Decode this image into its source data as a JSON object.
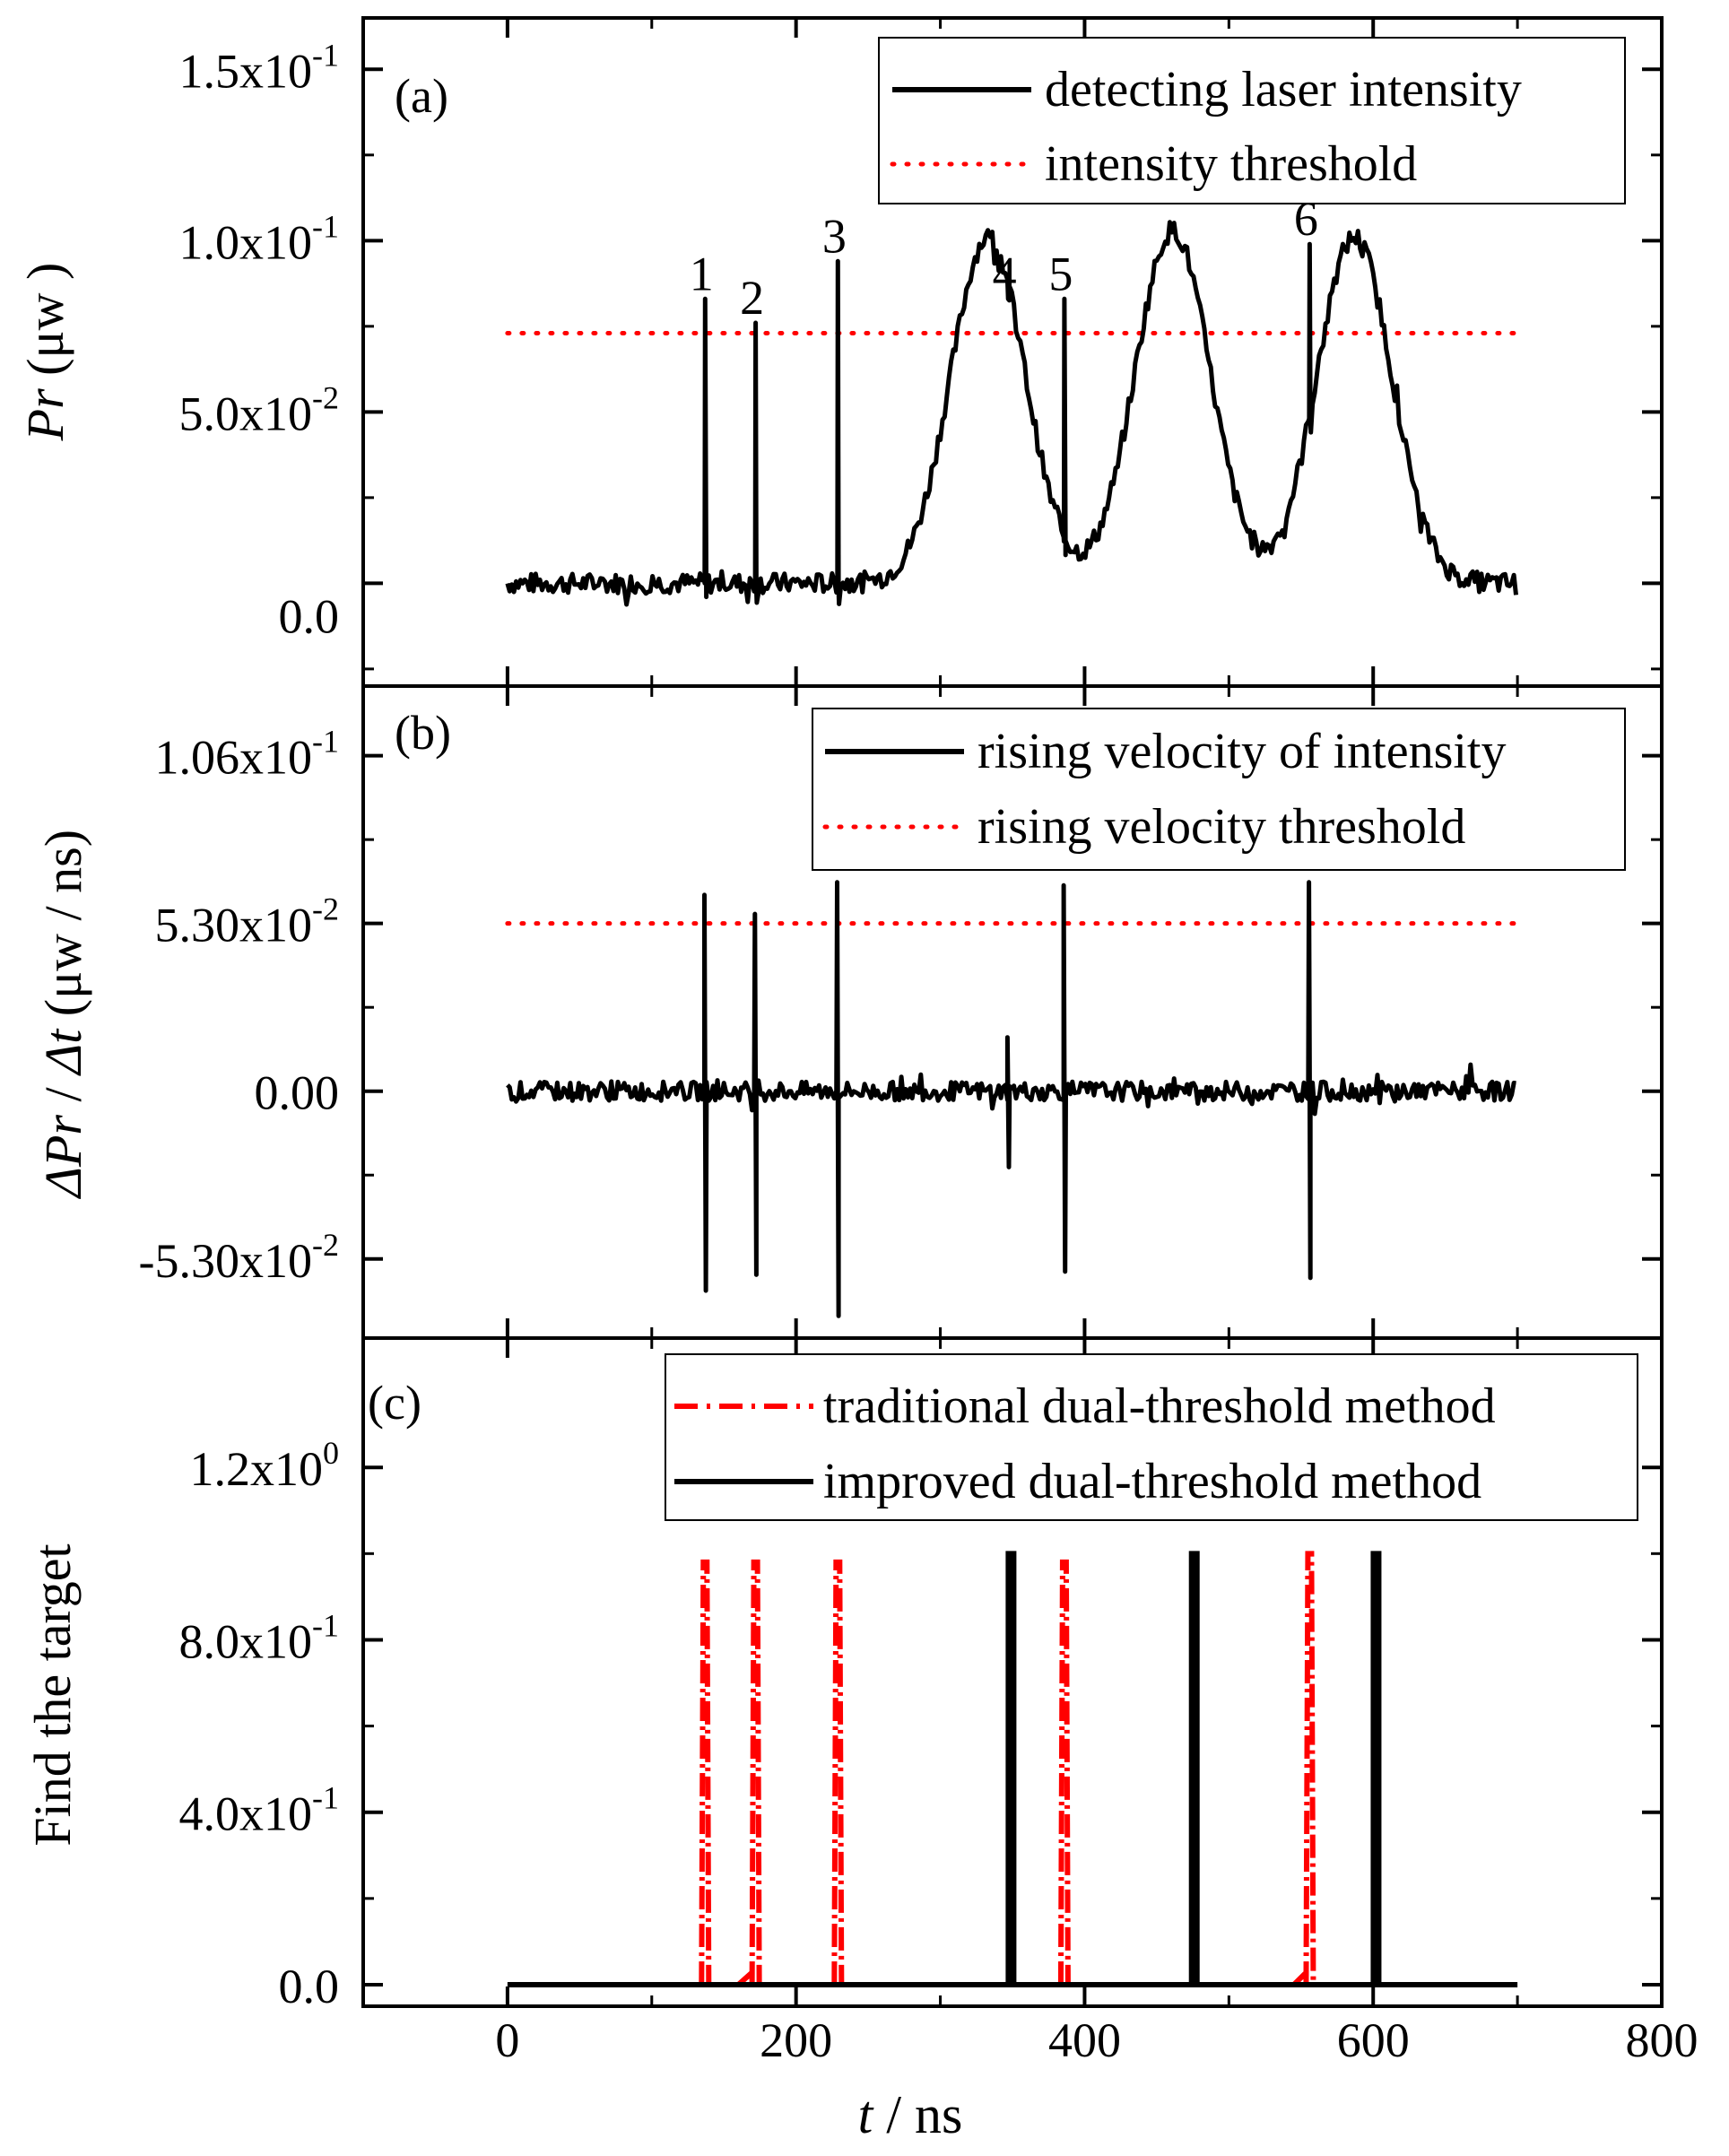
{
  "colors": {
    "primary": "#000000",
    "threshold": "#ff0000"
  },
  "chart_data": [
    {
      "type": "line",
      "panel_label": "(a)",
      "ylabel_italic": "Pr",
      "ylabel_rest": " (μw )",
      "xlim": [
        -100,
        800
      ],
      "ylim": [
        -0.03,
        0.165
      ],
      "yticks": [
        {
          "value": 0.15,
          "base": "1.5x10",
          "exp": "-1"
        },
        {
          "value": 0.1,
          "base": "1.0x10",
          "exp": "-1"
        },
        {
          "value": 0.05,
          "base": "5.0x10",
          "exp": "-2"
        },
        {
          "value": 0.0,
          "base": "0.0",
          "exp": ""
        }
      ],
      "legend": [
        "detecting laser intensity",
        "intensity threshold"
      ],
      "threshold": 0.073,
      "threshold_x": [
        0,
        700
      ],
      "spikes": [
        {
          "label": "1",
          "x": 137,
          "peak": 0.083
        },
        {
          "label": "2",
          "x": 172,
          "peak": 0.076
        },
        {
          "label": "3",
          "x": 229,
          "peak": 0.094
        },
        {
          "label": "4",
          "x": 347,
          "peak": 0.083
        },
        {
          "label": "5",
          "x": 386,
          "peak": 0.083
        },
        {
          "label": "6",
          "x": 556,
          "peak": 0.099
        }
      ],
      "pulses": [
        {
          "center": 333,
          "peak": 0.101,
          "width": 18
        },
        {
          "center": 461,
          "peak": 0.103,
          "width": 18
        },
        {
          "center": 587,
          "peak": 0.101,
          "width": 18
        }
      ],
      "noise_amplitude": 0.003,
      "series_x_range": [
        0,
        700
      ]
    },
    {
      "type": "line",
      "panel_label": "(b)",
      "ylabel_italic1": "ΔPr",
      "ylabel_sep": " / ",
      "ylabel_italic2": "Δt",
      "ylabel_rest": " (μw / ns)",
      "xlim": [
        -100,
        800
      ],
      "ylim": [
        -0.078,
        0.128
      ],
      "yticks": [
        {
          "value": 0.106,
          "base": "1.06x10",
          "exp": "-1"
        },
        {
          "value": 0.053,
          "base": "5.30x10",
          "exp": "-2"
        },
        {
          "value": 0.0,
          "base": "0.00",
          "exp": ""
        },
        {
          "value": -0.053,
          "base": "-5.30x10",
          "exp": "-2"
        }
      ],
      "legend": [
        "rising velocity of intensity",
        "rising velocity threshold"
      ],
      "threshold": 0.053,
      "threshold_x": [
        0,
        700
      ],
      "spikes": [
        {
          "x": 137,
          "pos": 0.062,
          "neg": -0.063
        },
        {
          "x": 172,
          "pos": 0.056,
          "neg": -0.058
        },
        {
          "x": 229,
          "pos": 0.066,
          "neg": -0.071
        },
        {
          "x": 347,
          "pos": 0.017,
          "neg": -0.024
        },
        {
          "x": 386,
          "pos": 0.065,
          "neg": -0.057
        },
        {
          "x": 556,
          "pos": 0.066,
          "neg": -0.059
        }
      ],
      "noise_amplitude": 0.003,
      "series_x_range": [
        0,
        700
      ]
    },
    {
      "type": "line",
      "panel_label": "(c)",
      "ylabel": "Find the target",
      "xlim": [
        -100,
        800
      ],
      "ylim": [
        -0.05,
        1.5
      ],
      "xlabel_italic": "t",
      "xlabel_rest": " / ns",
      "xticks": [
        0,
        200,
        400,
        600,
        800
      ],
      "yticks": [
        {
          "value": 1.2,
          "base": "1.2x10",
          "exp": "0"
        },
        {
          "value": 0.8,
          "base": "8.0x10",
          "exp": "-1"
        },
        {
          "value": 0.4,
          "base": "4.0x10",
          "exp": "-1"
        },
        {
          "value": 0.0,
          "base": "0.0",
          "exp": ""
        }
      ],
      "legend": [
        "traditional dual-threshold method",
        "improved dual-threshold method"
      ],
      "traditional_spikes": [
        {
          "x": 137,
          "peak": 0.98,
          "ramp_start": 137
        },
        {
          "x": 172,
          "peak": 0.98,
          "ramp_start": 160
        },
        {
          "x": 229,
          "peak": 0.98,
          "ramp_start": 229
        },
        {
          "x": 386,
          "peak": 0.98,
          "ramp_start": 386
        },
        {
          "x": 556,
          "peak": 1.0,
          "ramp_start": 545
        }
      ],
      "improved_spikes": [
        {
          "x": 349,
          "peak": 1.0
        },
        {
          "x": 476,
          "peak": 1.0
        },
        {
          "x": 602,
          "peak": 1.0
        }
      ],
      "series_x_range": [
        0,
        700
      ]
    }
  ]
}
